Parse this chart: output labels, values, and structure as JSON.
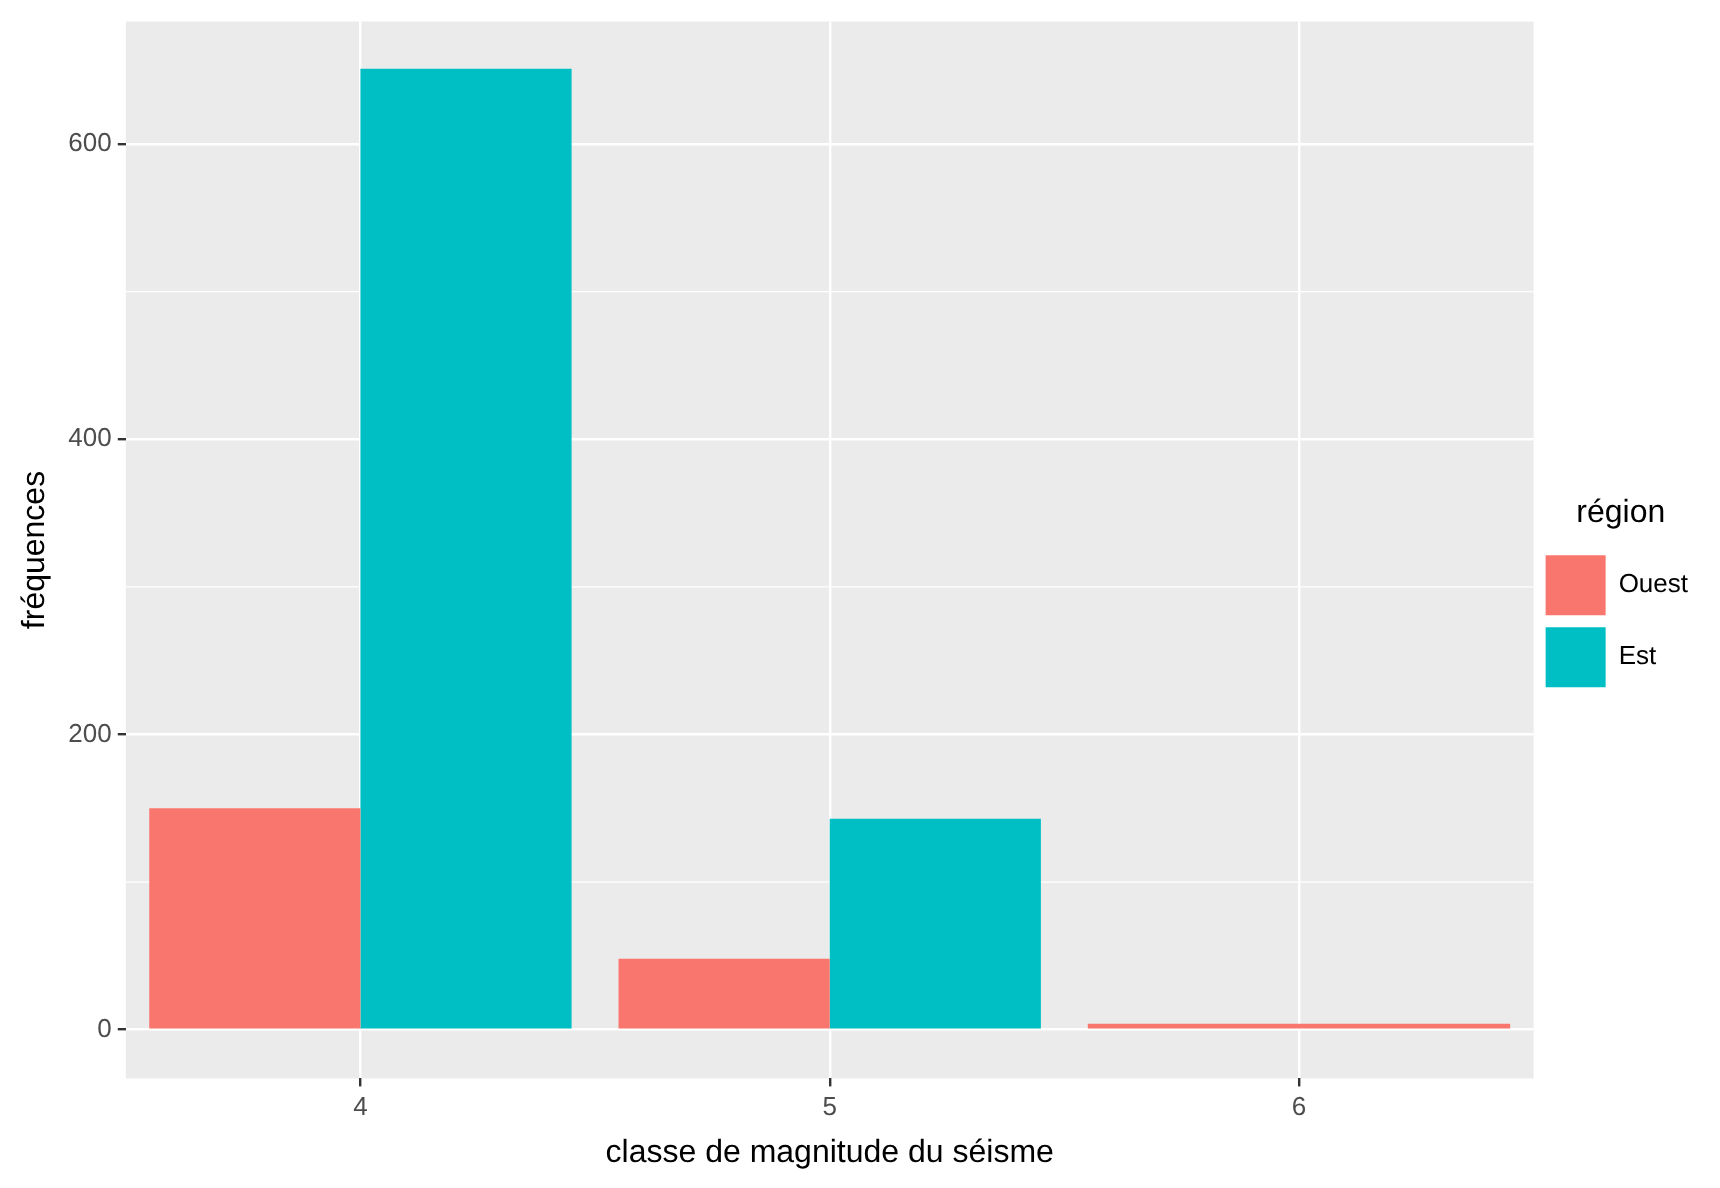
{
  "chart_data": {
    "type": "bar",
    "xlabel": "classe de magnitude du séisme",
    "ylabel": "fréquences",
    "legend_title": "région",
    "categories": [
      "4",
      "5",
      "6"
    ],
    "series": [
      {
        "name": "Ouest",
        "color": "#f8766d",
        "values": [
          150,
          48,
          4
        ]
      },
      {
        "name": "Est",
        "color": "#00bfc4",
        "values": [
          651,
          143,
          null
        ]
      }
    ],
    "ylim": [
      -33,
      683
    ],
    "yticks": [
      0,
      200,
      400,
      600
    ],
    "grid": true,
    "legend": "right"
  }
}
